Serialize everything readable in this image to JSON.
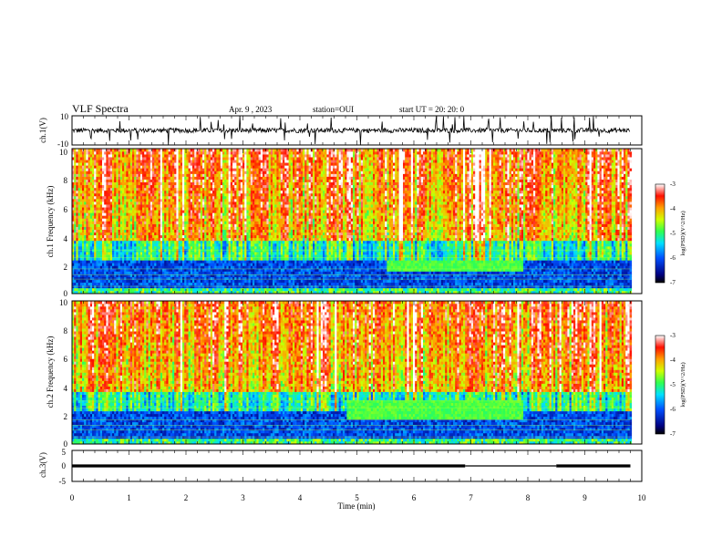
{
  "header": {
    "title": "VLF Spectra",
    "date": "Apr. 9 , 2023",
    "station": "station=OUI",
    "start": "start UT = 20: 20: 0"
  },
  "chart_data": {
    "type": "heatmap",
    "title": "VLF Spectra",
    "xlabel": "Time (min)",
    "xlim": [
      0,
      10
    ],
    "x_ticks": [
      "0",
      "1",
      "2",
      "3",
      "4",
      "5",
      "6",
      "7",
      "8",
      "9",
      "10"
    ],
    "data_end_min": 9.8,
    "panels": [
      {
        "id": "ch1-waveform",
        "type": "line",
        "ylabel": "ch.1(V)",
        "ylim": [
          -10,
          10
        ],
        "y_ticks": [
          "10",
          "-10"
        ],
        "baseline": 0
      },
      {
        "id": "ch1-spectrogram",
        "type": "heatmap",
        "ylabel": "ch.1 Frequency (kHz)",
        "ylim": [
          0,
          10
        ],
        "y_ticks": [
          "0",
          "2",
          "4",
          "6",
          "8",
          "10"
        ],
        "band_feature": {
          "start_min": 5.5,
          "end_min": 7.9,
          "freq_khz": [
            1.6,
            2.3
          ]
        },
        "colorbar": {
          "label": "log(PSD)(V^2/Hz)",
          "range": [
            -7,
            -3
          ],
          "ticks": [
            "-3",
            "-4",
            "-5",
            "-6",
            "-7"
          ]
        }
      },
      {
        "id": "ch2-spectrogram",
        "type": "heatmap",
        "ylabel": "ch.2 Frequency (kHz)",
        "ylim": [
          0,
          10
        ],
        "y_ticks": [
          "0",
          "2",
          "4",
          "6",
          "8",
          "10"
        ],
        "band_feature": {
          "start_min": 4.8,
          "end_min": 7.9,
          "freq_khz": [
            1.8,
            3.0
          ]
        },
        "colorbar": {
          "label": "log(PSD)(V^2/Hz)",
          "range": [
            -7,
            -3
          ],
          "ticks": [
            "-3",
            "-4",
            "-5",
            "-6",
            "-7"
          ]
        }
      },
      {
        "id": "ch3-level",
        "type": "line",
        "ylabel": "ch.3(V)",
        "ylim": [
          -5,
          5
        ],
        "y_ticks": [
          "5",
          "0",
          "-5"
        ],
        "segments": [
          {
            "start_min": 0,
            "end_min": 6.9,
            "value": 0
          },
          {
            "start_min": 6.9,
            "end_min": 8.5,
            "value": 0
          },
          {
            "start_min": 8.5,
            "end_min": 9.8,
            "value": 0
          }
        ]
      }
    ]
  }
}
